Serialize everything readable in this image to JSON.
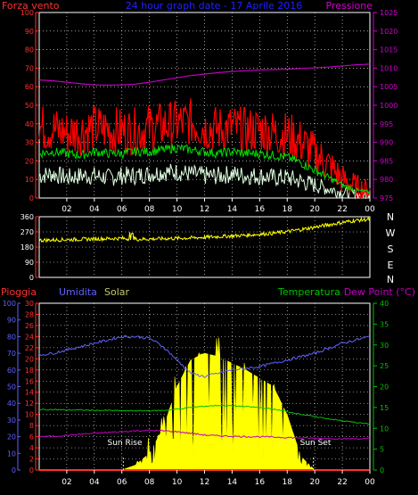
{
  "colors": {
    "wind_speed": "#ff0000",
    "wind_avg": "#00dd00",
    "wind_gust_low": "#e0ffe0",
    "pressure": "#c000c0",
    "direction": "#ffff00",
    "humidity": "#6060ff",
    "solar": "#ffff00",
    "temperature": "#00c000",
    "dew_point": "#c000c0",
    "rain": "#ff3030",
    "title": "#2020ff",
    "axis_left": "#ff3030",
    "axis_pressure": "#d000d0",
    "axis_hum": "#6060ff",
    "axis_temp": "#00c000",
    "white": "#ffffff"
  },
  "chart_data": [
    {
      "type": "line",
      "title": "24 hour graph date - 17 Aprile 2016",
      "left_label": "Forza vento",
      "right_label": "Pressione",
      "left_ticks": [
        "0",
        "10",
        "20",
        "30",
        "40",
        "50",
        "60",
        "70",
        "80",
        "90",
        "100"
      ],
      "right_ticks": [
        "975",
        "980",
        "985",
        "990",
        "995",
        "1000",
        "1005",
        "1010",
        "1015",
        "1020",
        "1025"
      ],
      "ylim_left": [
        0,
        100
      ],
      "ylim_right": [
        975,
        1025
      ],
      "x_ticks": [
        "02",
        "04",
        "06",
        "08",
        "10",
        "12",
        "14",
        "16",
        "18",
        "20",
        "22",
        "00"
      ],
      "x": [
        0,
        1,
        2,
        3,
        4,
        5,
        6,
        7,
        8,
        9,
        10,
        11,
        12,
        13,
        14,
        15,
        16,
        17,
        18,
        19,
        20,
        21,
        22,
        23,
        24
      ],
      "series": [
        {
          "name": "wind_max",
          "values": [
            38,
            37,
            35,
            36,
            38,
            37,
            36,
            36,
            38,
            39,
            40,
            41,
            38,
            37,
            38,
            36,
            37,
            35,
            34,
            30,
            24,
            18,
            10,
            6,
            4
          ]
        },
        {
          "name": "wind_avg",
          "values": [
            24,
            25,
            24,
            23,
            25,
            24,
            24,
            25,
            25,
            26,
            27,
            26,
            25,
            24,
            25,
            24,
            24,
            23,
            22,
            19,
            15,
            11,
            7,
            4,
            3
          ]
        },
        {
          "name": "wind_min",
          "values": [
            12,
            13,
            11,
            12,
            12,
            11,
            12,
            12,
            13,
            14,
            14,
            13,
            12,
            12,
            13,
            12,
            12,
            11,
            11,
            9,
            7,
            5,
            3,
            2,
            2
          ]
        },
        {
          "name": "pressure",
          "values": [
            1006.8,
            1006.6,
            1006.2,
            1005.8,
            1005.5,
            1005.4,
            1005.5,
            1005.7,
            1006.2,
            1006.8,
            1007.4,
            1008.0,
            1008.4,
            1008.8,
            1009.1,
            1009.3,
            1009.5,
            1009.6,
            1009.7,
            1009.9,
            1010.1,
            1010.3,
            1010.6,
            1010.9,
            1011.1
          ]
        }
      ]
    },
    {
      "type": "line",
      "left_ticks": [
        "0",
        "90",
        "180",
        "270",
        "360"
      ],
      "right_ticks": [
        "N",
        "W",
        "S",
        "E",
        "N"
      ],
      "ylim_left": [
        0,
        360
      ],
      "x_ticks": [
        "02",
        "04",
        "06",
        "08",
        "10",
        "12",
        "14",
        "16",
        "18",
        "20",
        "22",
        "00"
      ],
      "x": [
        0,
        1,
        2,
        3,
        4,
        5,
        6,
        7,
        8,
        9,
        10,
        11,
        12,
        13,
        14,
        15,
        16,
        17,
        18,
        19,
        20,
        21,
        22,
        23,
        24
      ],
      "series": [
        {
          "name": "direction",
          "values": [
            220,
            222,
            224,
            226,
            228,
            230,
            232,
            226,
            228,
            230,
            232,
            234,
            238,
            242,
            246,
            250,
            256,
            262,
            272,
            284,
            298,
            312,
            326,
            338,
            345
          ]
        }
      ]
    },
    {
      "type": "line",
      "labels": {
        "rain": "Pioggia",
        "humidity": "Umidita",
        "solar": "Solar",
        "temperature": "Temperatura",
        "dew_point": "Dew Point (°C)"
      },
      "annotations": [
        "Sun Rise",
        "Sun Set"
      ],
      "hum_ticks": [
        "0",
        "10",
        "20",
        "30",
        "40",
        "50",
        "60",
        "70",
        "80",
        "90",
        "100"
      ],
      "rain_ticks": [
        "0",
        "2",
        "4",
        "6",
        "8",
        "10",
        "12",
        "14",
        "16",
        "18",
        "20",
        "22",
        "24",
        "26",
        "28",
        "30"
      ],
      "temp_ticks": [
        "0",
        "5",
        "10",
        "15",
        "20",
        "25",
        "30",
        "35",
        "40"
      ],
      "ylim_hum": [
        0,
        100
      ],
      "ylim_rain": [
        0,
        30
      ],
      "ylim_temp": [
        0,
        40
      ],
      "x_ticks": [
        "02",
        "04",
        "06",
        "08",
        "10",
        "12",
        "14",
        "16",
        "18",
        "20",
        "22",
        "00"
      ],
      "x": [
        0,
        1,
        2,
        3,
        4,
        5,
        6,
        7,
        8,
        9,
        10,
        11,
        12,
        13,
        14,
        15,
        16,
        17,
        18,
        19,
        20,
        21,
        22,
        23,
        24
      ],
      "series": [
        {
          "name": "humidity",
          "values": [
            69,
            70,
            72,
            74,
            76,
            78,
            80,
            80,
            79,
            74,
            66,
            58,
            56,
            58,
            60,
            61,
            62,
            64,
            66,
            68,
            70,
            73,
            76,
            78,
            80
          ]
        },
        {
          "name": "solar",
          "values": [
            0,
            0,
            0,
            0,
            0,
            0,
            0,
            3,
            10,
            25,
            50,
            66,
            70,
            68,
            64,
            60,
            55,
            50,
            33,
            8,
            0,
            0,
            0,
            0,
            0
          ]
        },
        {
          "name": "temperature",
          "values": [
            14.5,
            14.5,
            14.4,
            14.4,
            14.3,
            14.3,
            14.2,
            14.2,
            14.2,
            14.3,
            14.6,
            15.0,
            15.3,
            15.5,
            15.4,
            15.2,
            15.0,
            14.6,
            14.0,
            13.4,
            12.8,
            12.3,
            11.8,
            11.4,
            11.0
          ]
        },
        {
          "name": "dew_point",
          "values": [
            8.0,
            8.1,
            8.3,
            8.6,
            8.8,
            9.0,
            9.2,
            9.4,
            9.5,
            9.4,
            9.2,
            8.8,
            8.4,
            8.2,
            8.1,
            8.0,
            8.0,
            7.9,
            7.8,
            7.7,
            7.6,
            7.6,
            7.5,
            7.5,
            7.5
          ]
        },
        {
          "name": "rain",
          "values": [
            0,
            0,
            0,
            0,
            0,
            0,
            0,
            0,
            0,
            0,
            0,
            0,
            0,
            0,
            0,
            0,
            0,
            0,
            0,
            0,
            0,
            0,
            0,
            0,
            0
          ]
        }
      ]
    }
  ]
}
